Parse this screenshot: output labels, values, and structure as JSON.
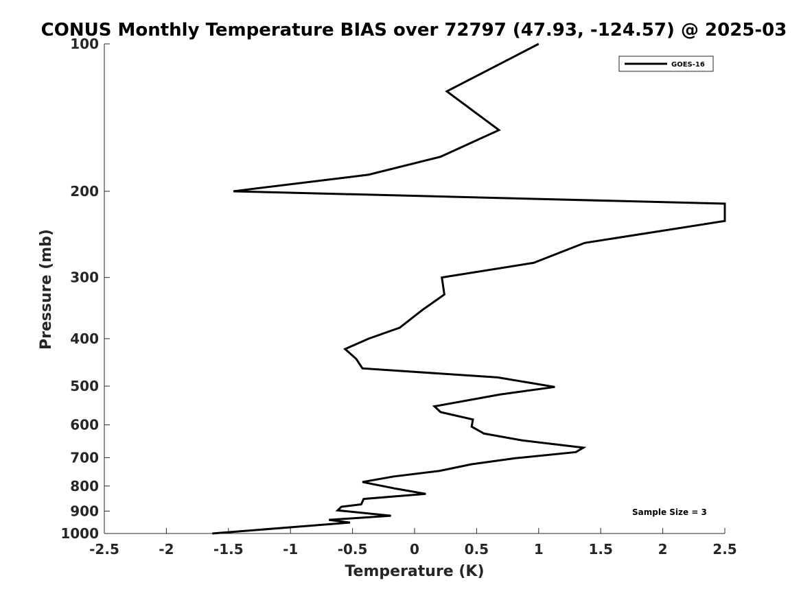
{
  "chart_data": {
    "type": "line",
    "title": "CONUS Monthly Temperature BIAS over 72797 (47.93, -124.57) @ 2025-03",
    "xlabel": "Temperature (K)",
    "ylabel": "Pressure (mb)",
    "xlim": [
      -2.5,
      2.5
    ],
    "ylim": [
      100,
      1000
    ],
    "y_scale": "log",
    "y_reversed": true,
    "x_ticks": [
      -2.5,
      -2,
      -1.5,
      -1,
      -0.5,
      0,
      0.5,
      1,
      1.5,
      2,
      2.5
    ],
    "x_tick_labels": [
      "-2.5",
      "-2",
      "-1.5",
      "-1",
      "-0.5",
      "0",
      "0.5",
      "1",
      "1.5",
      "2",
      "2.5"
    ],
    "y_ticks": [
      100,
      200,
      300,
      400,
      500,
      600,
      700,
      800,
      900,
      1000
    ],
    "y_tick_labels": [
      "100",
      "200",
      "300",
      "400",
      "500",
      "600",
      "700",
      "800",
      "900",
      "1000"
    ],
    "grid": false,
    "legend_position": "top-right",
    "annotation": "Sample Size = 3",
    "series": [
      {
        "name": "GOES-16",
        "color": "#000000",
        "points": [
          {
            "x": 1.0,
            "p": 100
          },
          {
            "x": 0.26,
            "p": 125
          },
          {
            "x": 0.68,
            "p": 150
          },
          {
            "x": 0.21,
            "p": 170
          },
          {
            "x": -0.37,
            "p": 185
          },
          {
            "x": -1.46,
            "p": 200
          },
          {
            "x": 2.5,
            "p": 212
          },
          {
            "x": 2.5,
            "p": 230
          },
          {
            "x": 1.37,
            "p": 255
          },
          {
            "x": 0.96,
            "p": 280
          },
          {
            "x": 0.22,
            "p": 300
          },
          {
            "x": 0.24,
            "p": 325
          },
          {
            "x": 0.06,
            "p": 350
          },
          {
            "x": -0.12,
            "p": 380
          },
          {
            "x": -0.37,
            "p": 400
          },
          {
            "x": -0.56,
            "p": 420
          },
          {
            "x": -0.47,
            "p": 440
          },
          {
            "x": -0.42,
            "p": 460
          },
          {
            "x": 0.67,
            "p": 480
          },
          {
            "x": 1.13,
            "p": 502
          },
          {
            "x": 0.69,
            "p": 520
          },
          {
            "x": 0.16,
            "p": 550
          },
          {
            "x": 0.21,
            "p": 565
          },
          {
            "x": 0.47,
            "p": 585
          },
          {
            "x": 0.46,
            "p": 605
          },
          {
            "x": 0.56,
            "p": 625
          },
          {
            "x": 0.86,
            "p": 645
          },
          {
            "x": 1.36,
            "p": 668
          },
          {
            "x": 1.3,
            "p": 682
          },
          {
            "x": 0.81,
            "p": 702
          },
          {
            "x": 0.46,
            "p": 722
          },
          {
            "x": 0.2,
            "p": 745
          },
          {
            "x": -0.17,
            "p": 765
          },
          {
            "x": -0.42,
            "p": 785
          },
          {
            "x": -0.15,
            "p": 810
          },
          {
            "x": 0.09,
            "p": 830
          },
          {
            "x": -0.41,
            "p": 850
          },
          {
            "x": -0.43,
            "p": 872
          },
          {
            "x": -0.59,
            "p": 882
          },
          {
            "x": -0.62,
            "p": 897
          },
          {
            "x": -0.19,
            "p": 920
          },
          {
            "x": -0.69,
            "p": 938
          },
          {
            "x": -0.52,
            "p": 950
          },
          {
            "x": -1.63,
            "p": 1000
          }
        ]
      }
    ]
  }
}
